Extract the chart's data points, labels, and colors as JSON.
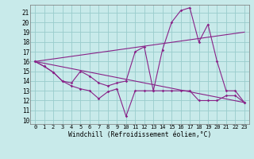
{
  "background_color": "#c8eaea",
  "line_color": "#882288",
  "grid_color": "#99cccc",
  "ylabel_values": [
    10,
    11,
    12,
    13,
    14,
    15,
    16,
    17,
    18,
    19,
    20,
    21
  ],
  "xlabel_values": [
    0,
    1,
    2,
    3,
    4,
    5,
    6,
    7,
    8,
    9,
    10,
    11,
    12,
    13,
    14,
    15,
    16,
    17,
    18,
    19,
    20,
    21,
    22,
    23
  ],
  "xlabel": "Windchill (Refroidissement éolien,°C)",
  "ylim": [
    9.6,
    21.8
  ],
  "xlim": [
    -0.5,
    23.5
  ],
  "line1_x": [
    0,
    1,
    2,
    3,
    4,
    5,
    6,
    7,
    8,
    9,
    10,
    11,
    12,
    13,
    14,
    15,
    16,
    17,
    18,
    19,
    20,
    21,
    22,
    23
  ],
  "line1_y": [
    16.0,
    15.5,
    14.9,
    14.0,
    13.5,
    13.2,
    13.0,
    12.2,
    12.9,
    13.2,
    10.4,
    13.0,
    13.0,
    13.0,
    13.0,
    13.0,
    13.0,
    13.0,
    12.0,
    12.0,
    12.0,
    12.5,
    12.5,
    11.8
  ],
  "line2_x": [
    0,
    1,
    2,
    3,
    4,
    5,
    6,
    7,
    8,
    9,
    10,
    11,
    12,
    13,
    14,
    15,
    16,
    17,
    18,
    19,
    20,
    21,
    22,
    23
  ],
  "line2_y": [
    16.0,
    15.5,
    14.9,
    14.0,
    13.8,
    15.0,
    14.5,
    13.8,
    13.5,
    13.8,
    14.0,
    17.0,
    17.5,
    13.0,
    17.2,
    20.0,
    21.2,
    21.5,
    18.0,
    19.8,
    16.0,
    13.0,
    13.0,
    11.8
  ],
  "line3_x": [
    0,
    23
  ],
  "line3_y": [
    16.0,
    19.0
  ],
  "line4_x": [
    0,
    23
  ],
  "line4_y": [
    16.0,
    11.8
  ]
}
